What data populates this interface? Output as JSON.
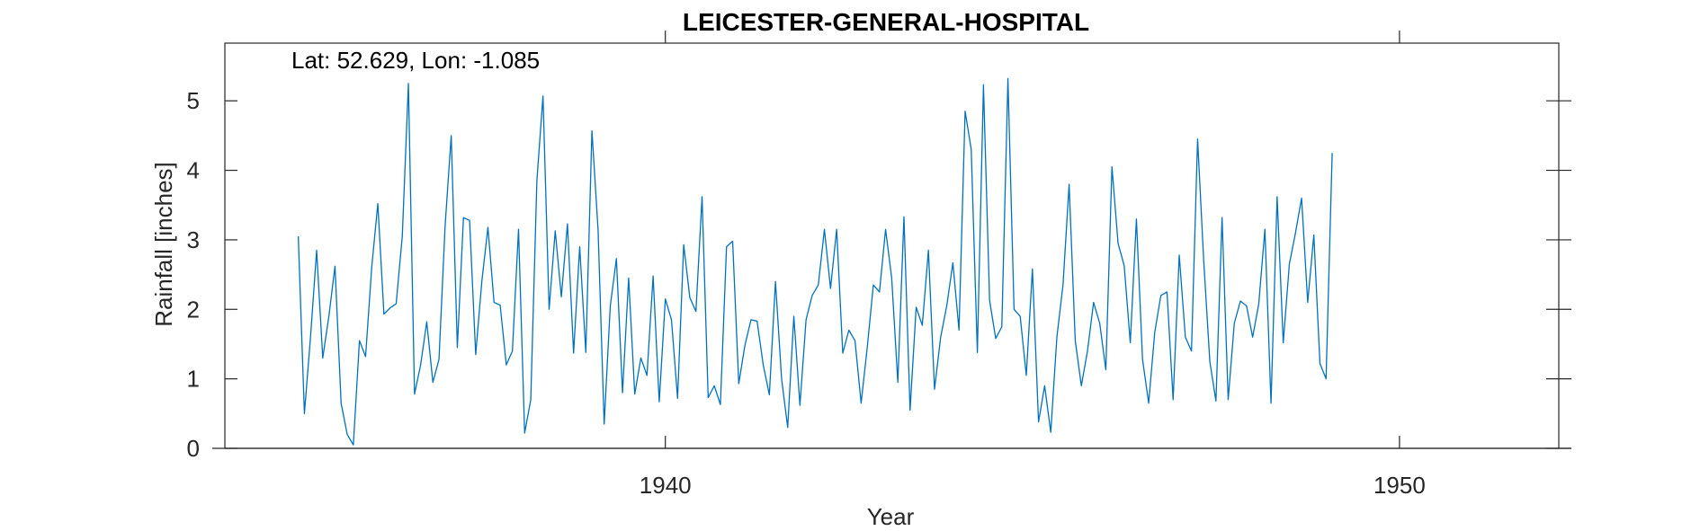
{
  "chart_data": {
    "type": "line",
    "title": "LEICESTER-GENERAL-HOSPITAL",
    "xlabel": "Year",
    "ylabel": "Rainfall [inches]",
    "annotation": "Lat: 52.629, Lon: -1.085",
    "xlim": [
      1934.0,
      1952.17
    ],
    "ylim": [
      0,
      5.83
    ],
    "xticks": [
      1940,
      1950
    ],
    "xtick_labels": [
      "1940",
      "1950"
    ],
    "yticks": [
      0,
      1,
      2,
      3,
      4,
      5
    ],
    "ytick_labels": [
      "0",
      "1",
      "2",
      "3",
      "4",
      "5"
    ],
    "grid": false,
    "line_color": "#0072BD",
    "series": [
      {
        "start": {
          "year": 1935,
          "month": 1
        },
        "step": "month",
        "values": [
          3.05,
          0.5,
          1.6,
          2.85,
          1.3,
          1.9,
          2.62,
          0.65,
          0.2,
          0.05,
          1.55,
          1.32,
          2.6,
          3.52,
          1.93,
          2.02,
          2.08,
          3.05,
          5.25,
          0.78,
          1.2,
          1.82,
          0.95,
          1.28,
          3.2,
          4.5,
          1.45,
          3.32,
          3.28,
          1.35,
          2.4,
          3.18,
          2.1,
          2.06,
          1.2,
          1.4,
          3.15,
          0.22,
          0.7,
          3.85,
          5.07,
          2.0,
          3.13,
          2.18,
          3.23,
          1.37,
          2.9,
          1.38,
          4.57,
          3.15,
          0.35,
          2.05,
          2.73,
          0.8,
          2.45,
          0.78,
          1.3,
          1.05,
          2.48,
          0.67,
          2.15,
          1.85,
          0.72,
          2.93,
          2.17,
          1.97,
          3.62,
          0.73,
          0.9,
          0.63,
          2.9,
          2.98,
          0.93,
          1.48,
          1.85,
          1.83,
          1.2,
          0.77,
          2.4,
          1.0,
          0.3,
          1.9,
          0.62,
          1.85,
          2.2,
          2.35,
          3.15,
          2.3,
          3.15,
          1.37,
          1.7,
          1.55,
          0.65,
          1.45,
          2.35,
          2.25,
          3.15,
          2.45,
          0.95,
          3.33,
          0.55,
          2.03,
          1.77,
          2.85,
          0.85,
          1.6,
          2.05,
          2.67,
          1.7,
          4.85,
          4.3,
          1.38,
          5.23,
          2.13,
          1.58,
          1.75,
          5.32,
          2.0,
          1.9,
          1.05,
          2.58,
          0.38,
          0.9,
          0.23,
          1.6,
          2.35,
          3.8,
          1.55,
          0.9,
          1.4,
          2.1,
          1.8,
          1.13,
          4.05,
          2.95,
          2.63,
          1.52,
          3.3,
          1.28,
          0.65,
          1.67,
          2.2,
          2.25,
          0.7,
          2.78,
          1.6,
          1.4,
          4.45,
          2.7,
          1.25,
          0.68,
          3.32,
          0.7,
          1.8,
          2.12,
          2.05,
          1.6,
          2.08,
          3.15,
          0.65,
          3.62,
          1.52,
          2.65,
          3.1,
          3.6,
          2.1,
          3.07,
          1.22,
          1.0,
          4.25
        ]
      }
    ]
  }
}
